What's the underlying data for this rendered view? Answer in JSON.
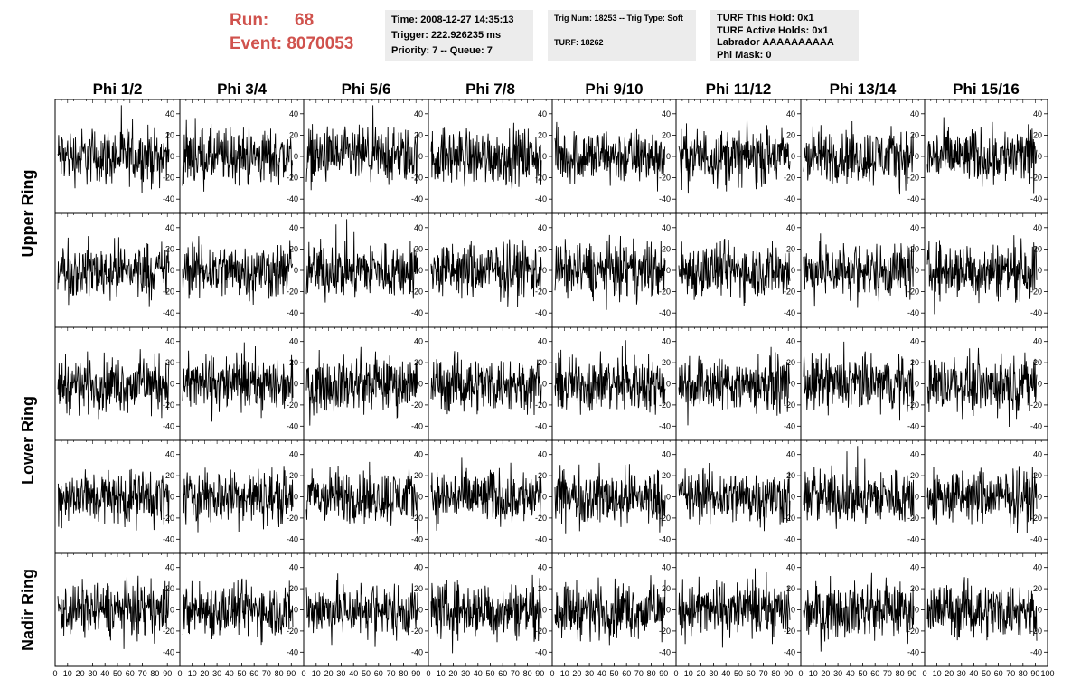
{
  "header": {
    "run_label": "Run:",
    "run_value": "68",
    "event_label": "Event:",
    "event_value": "8070053"
  },
  "info1": {
    "time": "Time: 2008-12-27 14:35:13",
    "trigger": "Trigger: 222.926235 ms",
    "priority": "Priority: 7 -- Queue: 7"
  },
  "info2": {
    "trig": "Trig Num: 18253 -- Trig Type: Soft",
    "turf": "TURF: 18262"
  },
  "info3": {
    "hold": "TURF This Hold: 0x1",
    "active": "TURF Active Holds: 0x1",
    "labrador": "Labrador AAAAAAAAAA",
    "phimask": "Phi Mask: 0"
  },
  "chart_data": {
    "type": "line",
    "columns": [
      "Phi 1/2",
      "Phi 3/4",
      "Phi 5/6",
      "Phi 7/8",
      "Phi 9/10",
      "Phi 11/12",
      "Phi 13/14",
      "Phi 15/16"
    ],
    "row_labels": [
      {
        "text": "Upper Ring",
        "rows": [
          0,
          1
        ]
      },
      {
        "text": "Lower Ring",
        "rows": [
          2,
          3
        ]
      },
      {
        "text": "Nadir Ring",
        "rows": [
          4
        ]
      }
    ],
    "panel_rows": 5,
    "ylim": [
      -50,
      50
    ],
    "yticks": [
      -40,
      -20,
      0,
      20,
      40
    ],
    "xlim": [
      0,
      100
    ],
    "xticks": [
      "0",
      "10",
      "20",
      "30",
      "40",
      "50",
      "60",
      "70",
      "80",
      "90",
      "100"
    ],
    "samples_per_panel": 260,
    "grid": false
  }
}
